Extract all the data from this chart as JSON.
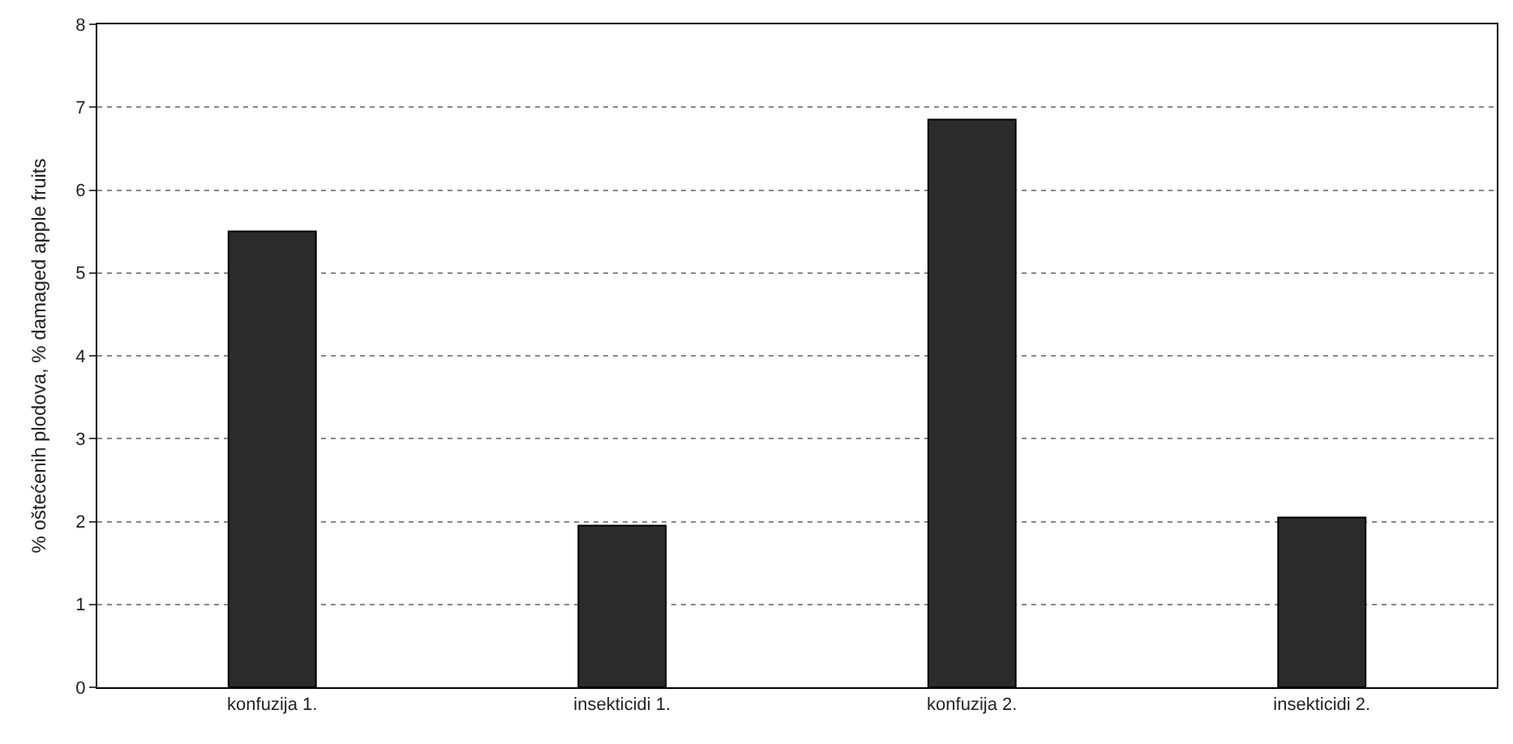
{
  "chart_data": {
    "type": "bar",
    "ylabel": "% oštećenih plodova, % damaged apple fruits",
    "categories": [
      "konfuzija 1.",
      "insekticidi 1.",
      "konfuzija 2.",
      "insekticidi 2."
    ],
    "values": [
      5.5,
      1.95,
      6.85,
      2.05
    ],
    "color": "#2b2b2b",
    "ylim": [
      0,
      8
    ],
    "yticks": [
      0,
      1,
      2,
      3,
      4,
      5,
      6,
      7,
      8
    ],
    "grid": "y"
  }
}
